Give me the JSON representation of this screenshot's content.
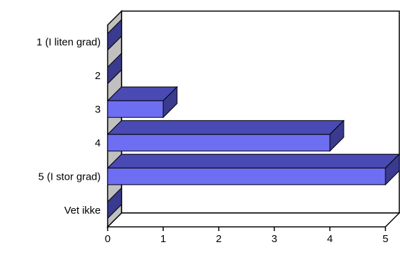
{
  "chart_data": {
    "type": "bar",
    "orientation": "horizontal",
    "style": "3d",
    "categories": [
      "1 (I liten grad)",
      "2",
      "3",
      "4",
      "5 (I stor grad)",
      "Vet ikke"
    ],
    "values": [
      0,
      0,
      1,
      4,
      5,
      0
    ],
    "xlim": [
      0,
      5
    ],
    "x_ticks": [
      "0",
      "1",
      "2",
      "3",
      "4",
      "5"
    ],
    "grid": false,
    "legend": "none",
    "colors": {
      "bar_front": "#6e6ef2",
      "bar_top": "#4a4ab4",
      "bar_side": "#3a3a8e",
      "wall": "#c0c0c0",
      "floor_stub": "#3a3a8e",
      "outline": "#000000"
    }
  }
}
